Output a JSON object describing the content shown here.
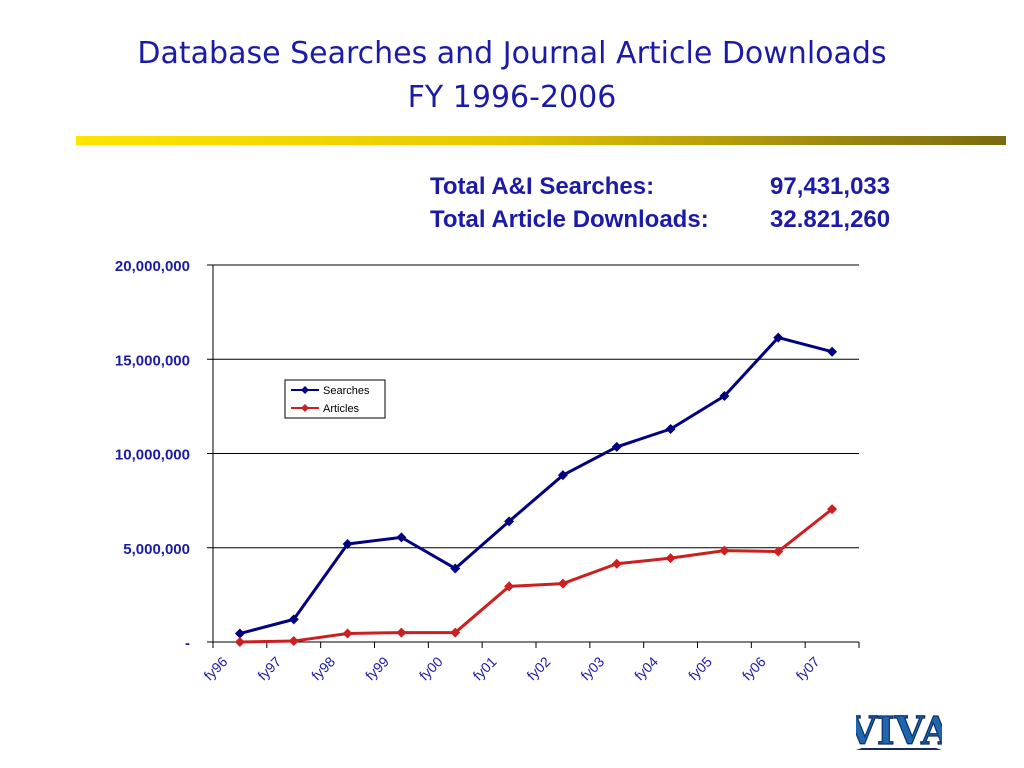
{
  "slide": {
    "title_line1": "Database Searches and Journal Article  Downloads",
    "title_line2": "FY 1996-2006",
    "totals": [
      {
        "label": "Total A&I Searches:",
        "value": "97,431,033"
      },
      {
        "label": "Total Article Downloads:",
        "value": "32.821,260"
      }
    ],
    "logo_text": "VIVA"
  },
  "colors": {
    "title": "#1b1ba8",
    "searches": "#000080",
    "articles": "#cc1f1f",
    "rule": "#e8c800"
  },
  "chart_data": {
    "type": "line",
    "categories": [
      "fy96",
      "fy97",
      "fy98",
      "fy99",
      "fy00",
      "fy01",
      "fy02",
      "fy03",
      "fy04",
      "fy05",
      "fy06",
      "fy07"
    ],
    "series": [
      {
        "name": "Searches",
        "values": [
          450000,
          1200000,
          5200000,
          5550000,
          3900000,
          6400000,
          8850000,
          10350000,
          11300000,
          13050000,
          16150000,
          15400000
        ]
      },
      {
        "name": "Articles",
        "values": [
          0,
          50000,
          450000,
          500000,
          500000,
          2950000,
          3100000,
          4150000,
          4450000,
          4850000,
          4800000,
          7050000
        ]
      }
    ],
    "yticks": [
      "-",
      "5,000,000",
      "10,000,000",
      "15,000,000",
      "20,000,000"
    ],
    "ylim": [
      0,
      20000000
    ],
    "grid": true,
    "legend": "upper-left inside plot"
  }
}
